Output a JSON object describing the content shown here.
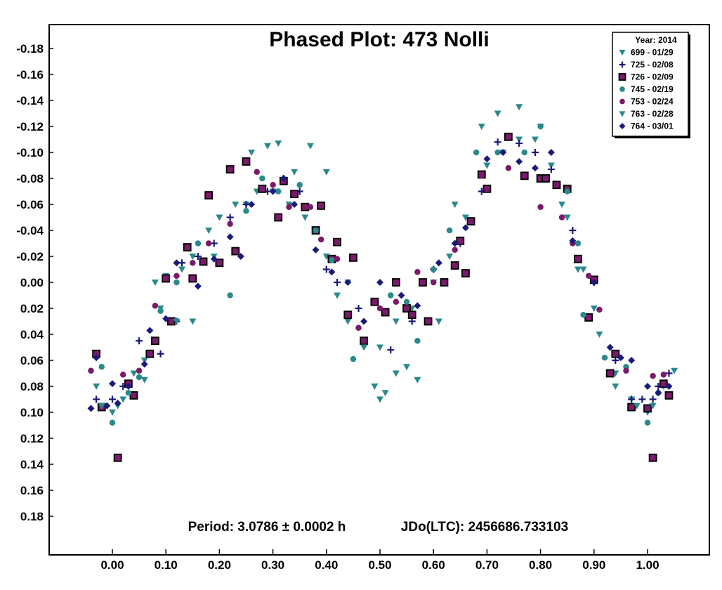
{
  "chart_data": {
    "type": "scatter",
    "title": "Phased Plot: 473 Nolli",
    "footer_period": "Period: 3.0786 ± 0.0002 h",
    "footer_epoch": "JDo(LTC): 2456686.733103",
    "xlim": [
      -0.12,
      1.12
    ],
    "ylim": [
      0.2,
      -0.2
    ],
    "y_inverted": true,
    "x_ticks": [
      "0.00",
      "0.10",
      "0.20",
      "0.30",
      "0.40",
      "0.50",
      "0.60",
      "0.70",
      "0.80",
      "0.90",
      "1.00"
    ],
    "y_ticks": [
      "-0.18",
      "-0.16",
      "-0.14",
      "-0.12",
      "-0.10",
      "-0.08",
      "-0.06",
      "-0.04",
      "-0.02",
      "0.00",
      "0.02",
      "0.04",
      "0.06",
      "0.08",
      "0.10",
      "0.12",
      "0.14",
      "0.16",
      "0.18"
    ],
    "legend_title": "Year: 2014",
    "legend_position": "top-right",
    "series": [
      {
        "name": "699 - 01/29",
        "marker": "triangle-down",
        "color": "#2a8a8a",
        "points": [
          [
            -0.03,
            0.08
          ],
          [
            0.0,
            0.1
          ],
          [
            0.02,
            0.09
          ],
          [
            0.04,
            0.07
          ],
          [
            0.06,
            0.06
          ],
          [
            0.08,
            0.0
          ],
          [
            0.1,
            -0.005
          ],
          [
            0.13,
            -0.01
          ],
          [
            0.15,
            -0.02
          ],
          [
            0.18,
            -0.04
          ],
          [
            0.2,
            -0.05
          ],
          [
            0.23,
            -0.06
          ],
          [
            0.25,
            -0.06
          ],
          [
            0.27,
            -0.07
          ],
          [
            0.3,
            -0.07
          ],
          [
            0.33,
            -0.06
          ],
          [
            0.36,
            -0.05
          ],
          [
            0.38,
            -0.04
          ],
          [
            0.4,
            -0.02
          ],
          [
            0.42,
            0.01
          ],
          [
            0.44,
            0.03
          ],
          [
            0.47,
            0.05
          ],
          [
            0.5,
            0.05
          ],
          [
            0.53,
            0.03
          ],
          [
            0.56,
            0.02
          ],
          [
            0.6,
            0.0
          ],
          [
            0.63,
            -0.02
          ],
          [
            0.66,
            -0.05
          ],
          [
            0.7,
            -0.09
          ],
          [
            0.73,
            -0.1
          ],
          [
            0.76,
            -0.11
          ],
          [
            0.79,
            -0.11
          ],
          [
            0.82,
            -0.09
          ],
          [
            0.85,
            -0.05
          ],
          [
            0.88,
            -0.01
          ],
          [
            0.91,
            0.04
          ],
          [
            0.94,
            0.07
          ],
          [
            0.97,
            0.09
          ],
          [
            1.0,
            0.1
          ],
          [
            1.03,
            0.08
          ]
        ]
      },
      {
        "name": "725 - 02/08",
        "marker": "plus",
        "color": "#1a1a7a",
        "points": [
          [
            -0.03,
            0.09
          ],
          [
            0.0,
            0.09
          ],
          [
            0.02,
            0.08
          ],
          [
            0.05,
            0.045
          ],
          [
            0.09,
            0.055
          ],
          [
            0.12,
            0.03
          ],
          [
            0.13,
            -0.015
          ],
          [
            0.16,
            -0.02
          ],
          [
            0.19,
            -0.03
          ],
          [
            0.22,
            -0.05
          ],
          [
            0.25,
            -0.06
          ],
          [
            0.29,
            -0.07
          ],
          [
            0.32,
            -0.08
          ],
          [
            0.35,
            -0.07
          ],
          [
            0.4,
            -0.01
          ],
          [
            0.42,
            0.0
          ],
          [
            0.46,
            0.02
          ],
          [
            0.52,
            0.052
          ],
          [
            0.56,
            0.03
          ],
          [
            0.6,
            -0.01
          ],
          [
            0.65,
            -0.03
          ],
          [
            0.69,
            -0.07
          ],
          [
            0.72,
            -0.108
          ],
          [
            0.76,
            -0.107
          ],
          [
            0.79,
            -0.1
          ],
          [
            0.82,
            -0.087
          ],
          [
            0.86,
            -0.04
          ],
          [
            0.9,
            0.0
          ],
          [
            0.94,
            0.06
          ],
          [
            0.97,
            0.09
          ],
          [
            0.99,
            0.09
          ],
          [
            1.01,
            0.09
          ],
          [
            1.02,
            0.08
          ],
          [
            1.04,
            0.07
          ]
        ]
      },
      {
        "name": "726 - 02/09",
        "marker": "square",
        "color": "#7a1a6a",
        "points": [
          [
            -0.03,
            0.055
          ],
          [
            -0.02,
            0.096
          ],
          [
            0.01,
            0.135
          ],
          [
            0.03,
            0.078
          ],
          [
            0.04,
            0.087
          ],
          [
            0.07,
            0.055
          ],
          [
            0.08,
            0.045
          ],
          [
            0.1,
            -0.003
          ],
          [
            0.11,
            0.03
          ],
          [
            0.14,
            -0.027
          ],
          [
            0.15,
            -0.003
          ],
          [
            0.17,
            -0.016
          ],
          [
            0.18,
            -0.067
          ],
          [
            0.2,
            -0.015
          ],
          [
            0.22,
            -0.087
          ],
          [
            0.23,
            -0.024
          ],
          [
            0.25,
            -0.093
          ],
          [
            0.28,
            -0.072
          ],
          [
            0.31,
            -0.05
          ],
          [
            0.32,
            -0.078
          ],
          [
            0.34,
            -0.068
          ],
          [
            0.36,
            -0.058
          ],
          [
            0.38,
            -0.04
          ],
          [
            0.39,
            -0.059
          ],
          [
            0.41,
            -0.018
          ],
          [
            0.42,
            -0.031
          ],
          [
            0.44,
            0.025
          ],
          [
            0.45,
            -0.019
          ],
          [
            0.47,
            0.045
          ],
          [
            0.49,
            0.015
          ],
          [
            0.51,
            0.023
          ],
          [
            0.53,
            0.0
          ],
          [
            0.55,
            0.02
          ],
          [
            0.56,
            0.025
          ],
          [
            0.58,
            0.0
          ],
          [
            0.59,
            0.03
          ],
          [
            0.62,
            0.0
          ],
          [
            0.64,
            -0.013
          ],
          [
            0.65,
            -0.032
          ],
          [
            0.66,
            -0.007
          ],
          [
            0.67,
            -0.047
          ],
          [
            0.69,
            -0.083
          ],
          [
            0.7,
            -0.072
          ],
          [
            0.74,
            -0.112
          ],
          [
            0.77,
            -0.082
          ],
          [
            0.8,
            -0.08
          ],
          [
            0.81,
            -0.08
          ],
          [
            0.83,
            -0.075
          ],
          [
            0.85,
            -0.072
          ],
          [
            0.87,
            -0.018
          ],
          [
            0.9,
            -0.002
          ],
          [
            0.89,
            0.027
          ],
          [
            0.93,
            0.07
          ],
          [
            0.94,
            0.055
          ],
          [
            0.97,
            0.096
          ],
          [
            1.0,
            0.097
          ],
          [
            1.01,
            0.135
          ],
          [
            1.03,
            0.078
          ],
          [
            1.04,
            0.087
          ]
        ]
      },
      {
        "name": "745 - 02/19",
        "marker": "circle",
        "color": "#2a8a8a",
        "points": [
          [
            -0.02,
            0.065
          ],
          [
            0.0,
            0.108
          ],
          [
            0.03,
            0.085
          ],
          [
            0.05,
            0.073
          ],
          [
            0.09,
            0.022
          ],
          [
            0.12,
            0.0
          ],
          [
            0.16,
            -0.03
          ],
          [
            0.22,
            0.01
          ],
          [
            0.25,
            -0.055
          ],
          [
            0.28,
            -0.08
          ],
          [
            0.31,
            -0.07
          ],
          [
            0.35,
            -0.075
          ],
          [
            0.38,
            -0.04
          ],
          [
            0.41,
            -0.017
          ],
          [
            0.45,
            0.059
          ],
          [
            0.52,
            0.01
          ],
          [
            0.55,
            0.015
          ],
          [
            0.57,
            0.045
          ],
          [
            0.6,
            -0.01
          ],
          [
            0.63,
            -0.04
          ],
          [
            0.68,
            -0.1
          ],
          [
            0.72,
            -0.1
          ],
          [
            0.77,
            -0.1
          ],
          [
            0.8,
            -0.12
          ],
          [
            0.85,
            -0.07
          ],
          [
            0.87,
            -0.03
          ],
          [
            0.88,
            0.025
          ],
          [
            0.92,
            0.058
          ],
          [
            0.96,
            0.065
          ],
          [
            1.0,
            0.108
          ],
          [
            1.02,
            0.085
          ]
        ]
      },
      {
        "name": "753 - 02/24",
        "marker": "circle",
        "color": "#7a1a6a",
        "points": [
          [
            -0.04,
            0.068
          ],
          [
            0.02,
            0.071
          ],
          [
            0.05,
            0.068
          ],
          [
            0.08,
            0.018
          ],
          [
            0.12,
            -0.005
          ],
          [
            0.15,
            -0.015
          ],
          [
            0.18,
            -0.03
          ],
          [
            0.22,
            -0.045
          ],
          [
            0.27,
            -0.085
          ],
          [
            0.3,
            -0.075
          ],
          [
            0.33,
            -0.058
          ],
          [
            0.37,
            -0.058
          ],
          [
            0.39,
            -0.033
          ],
          [
            0.42,
            -0.018
          ],
          [
            0.46,
            0.035
          ],
          [
            0.5,
            0.02
          ],
          [
            0.53,
            0.015
          ],
          [
            0.57,
            -0.008
          ],
          [
            0.6,
            0.0
          ],
          [
            0.64,
            -0.025
          ],
          [
            0.69,
            -0.082
          ],
          [
            0.74,
            -0.088
          ],
          [
            0.8,
            -0.058
          ],
          [
            0.84,
            -0.05
          ],
          [
            0.86,
            -0.03
          ],
          [
            0.89,
            -0.005
          ],
          [
            0.91,
            0.021
          ],
          [
            0.96,
            0.068
          ],
          [
            1.01,
            0.072
          ],
          [
            1.03,
            0.071
          ]
        ]
      },
      {
        "name": "763 - 02/28",
        "marker": "triangle-down",
        "color": "#2a8a8a",
        "points": [
          [
            -0.02,
            0.095
          ],
          [
            0.01,
            0.095
          ],
          [
            0.06,
            0.075
          ],
          [
            0.09,
            0.02
          ],
          [
            0.12,
            0.03
          ],
          [
            0.15,
            0.03
          ],
          [
            0.19,
            -0.02
          ],
          [
            0.26,
            -0.1
          ],
          [
            0.29,
            -0.105
          ],
          [
            0.31,
            -0.107
          ],
          [
            0.34,
            -0.085
          ],
          [
            0.37,
            -0.105
          ],
          [
            0.4,
            -0.085
          ],
          [
            0.44,
            0.0
          ],
          [
            0.47,
            0.05
          ],
          [
            0.49,
            0.08
          ],
          [
            0.5,
            0.09
          ],
          [
            0.51,
            0.085
          ],
          [
            0.53,
            0.07
          ],
          [
            0.55,
            0.065
          ],
          [
            0.57,
            0.075
          ],
          [
            0.61,
            0.03
          ],
          [
            0.64,
            -0.06
          ],
          [
            0.69,
            -0.12
          ],
          [
            0.72,
            -0.13
          ],
          [
            0.76,
            -0.135
          ],
          [
            0.8,
            -0.12
          ],
          [
            0.84,
            -0.06
          ],
          [
            0.87,
            -0.01
          ],
          [
            0.9,
            0.02
          ],
          [
            0.94,
            0.08
          ],
          [
            0.98,
            0.095
          ],
          [
            1.01,
            0.095
          ],
          [
            1.05,
            0.068
          ]
        ]
      },
      {
        "name": "764 - 03/01",
        "marker": "diamond",
        "color": "#1a1a7a",
        "points": [
          [
            -0.04,
            0.097
          ],
          [
            -0.03,
            0.058
          ],
          [
            -0.01,
            0.095
          ],
          [
            0.0,
            0.078
          ],
          [
            0.01,
            0.093
          ],
          [
            0.03,
            0.08
          ],
          [
            0.06,
            0.063
          ],
          [
            0.07,
            0.037
          ],
          [
            0.1,
            0.028
          ],
          [
            0.12,
            -0.015
          ],
          [
            0.16,
            0.003
          ],
          [
            0.19,
            -0.018
          ],
          [
            0.22,
            -0.035
          ],
          [
            0.24,
            -0.02
          ],
          [
            0.26,
            -0.06
          ],
          [
            0.3,
            -0.07
          ],
          [
            0.32,
            -0.08
          ],
          [
            0.34,
            -0.06
          ],
          [
            0.38,
            -0.025
          ],
          [
            0.41,
            -0.008
          ],
          [
            0.44,
            0.0
          ],
          [
            0.47,
            0.03
          ],
          [
            0.5,
            0.0
          ],
          [
            0.54,
            0.01
          ],
          [
            0.57,
            0.018
          ],
          [
            0.61,
            -0.015
          ],
          [
            0.64,
            -0.03
          ],
          [
            0.66,
            -0.042
          ],
          [
            0.7,
            -0.095
          ],
          [
            0.73,
            -0.1
          ],
          [
            0.76,
            -0.093
          ],
          [
            0.79,
            -0.088
          ],
          [
            0.82,
            -0.1
          ],
          [
            0.86,
            -0.032
          ],
          [
            0.9,
            0.0
          ],
          [
            0.93,
            0.05
          ],
          [
            0.95,
            0.058
          ],
          [
            0.97,
            0.06
          ],
          [
            1.0,
            0.08
          ],
          [
            1.02,
            0.085
          ],
          [
            1.04,
            0.08
          ]
        ]
      }
    ]
  }
}
